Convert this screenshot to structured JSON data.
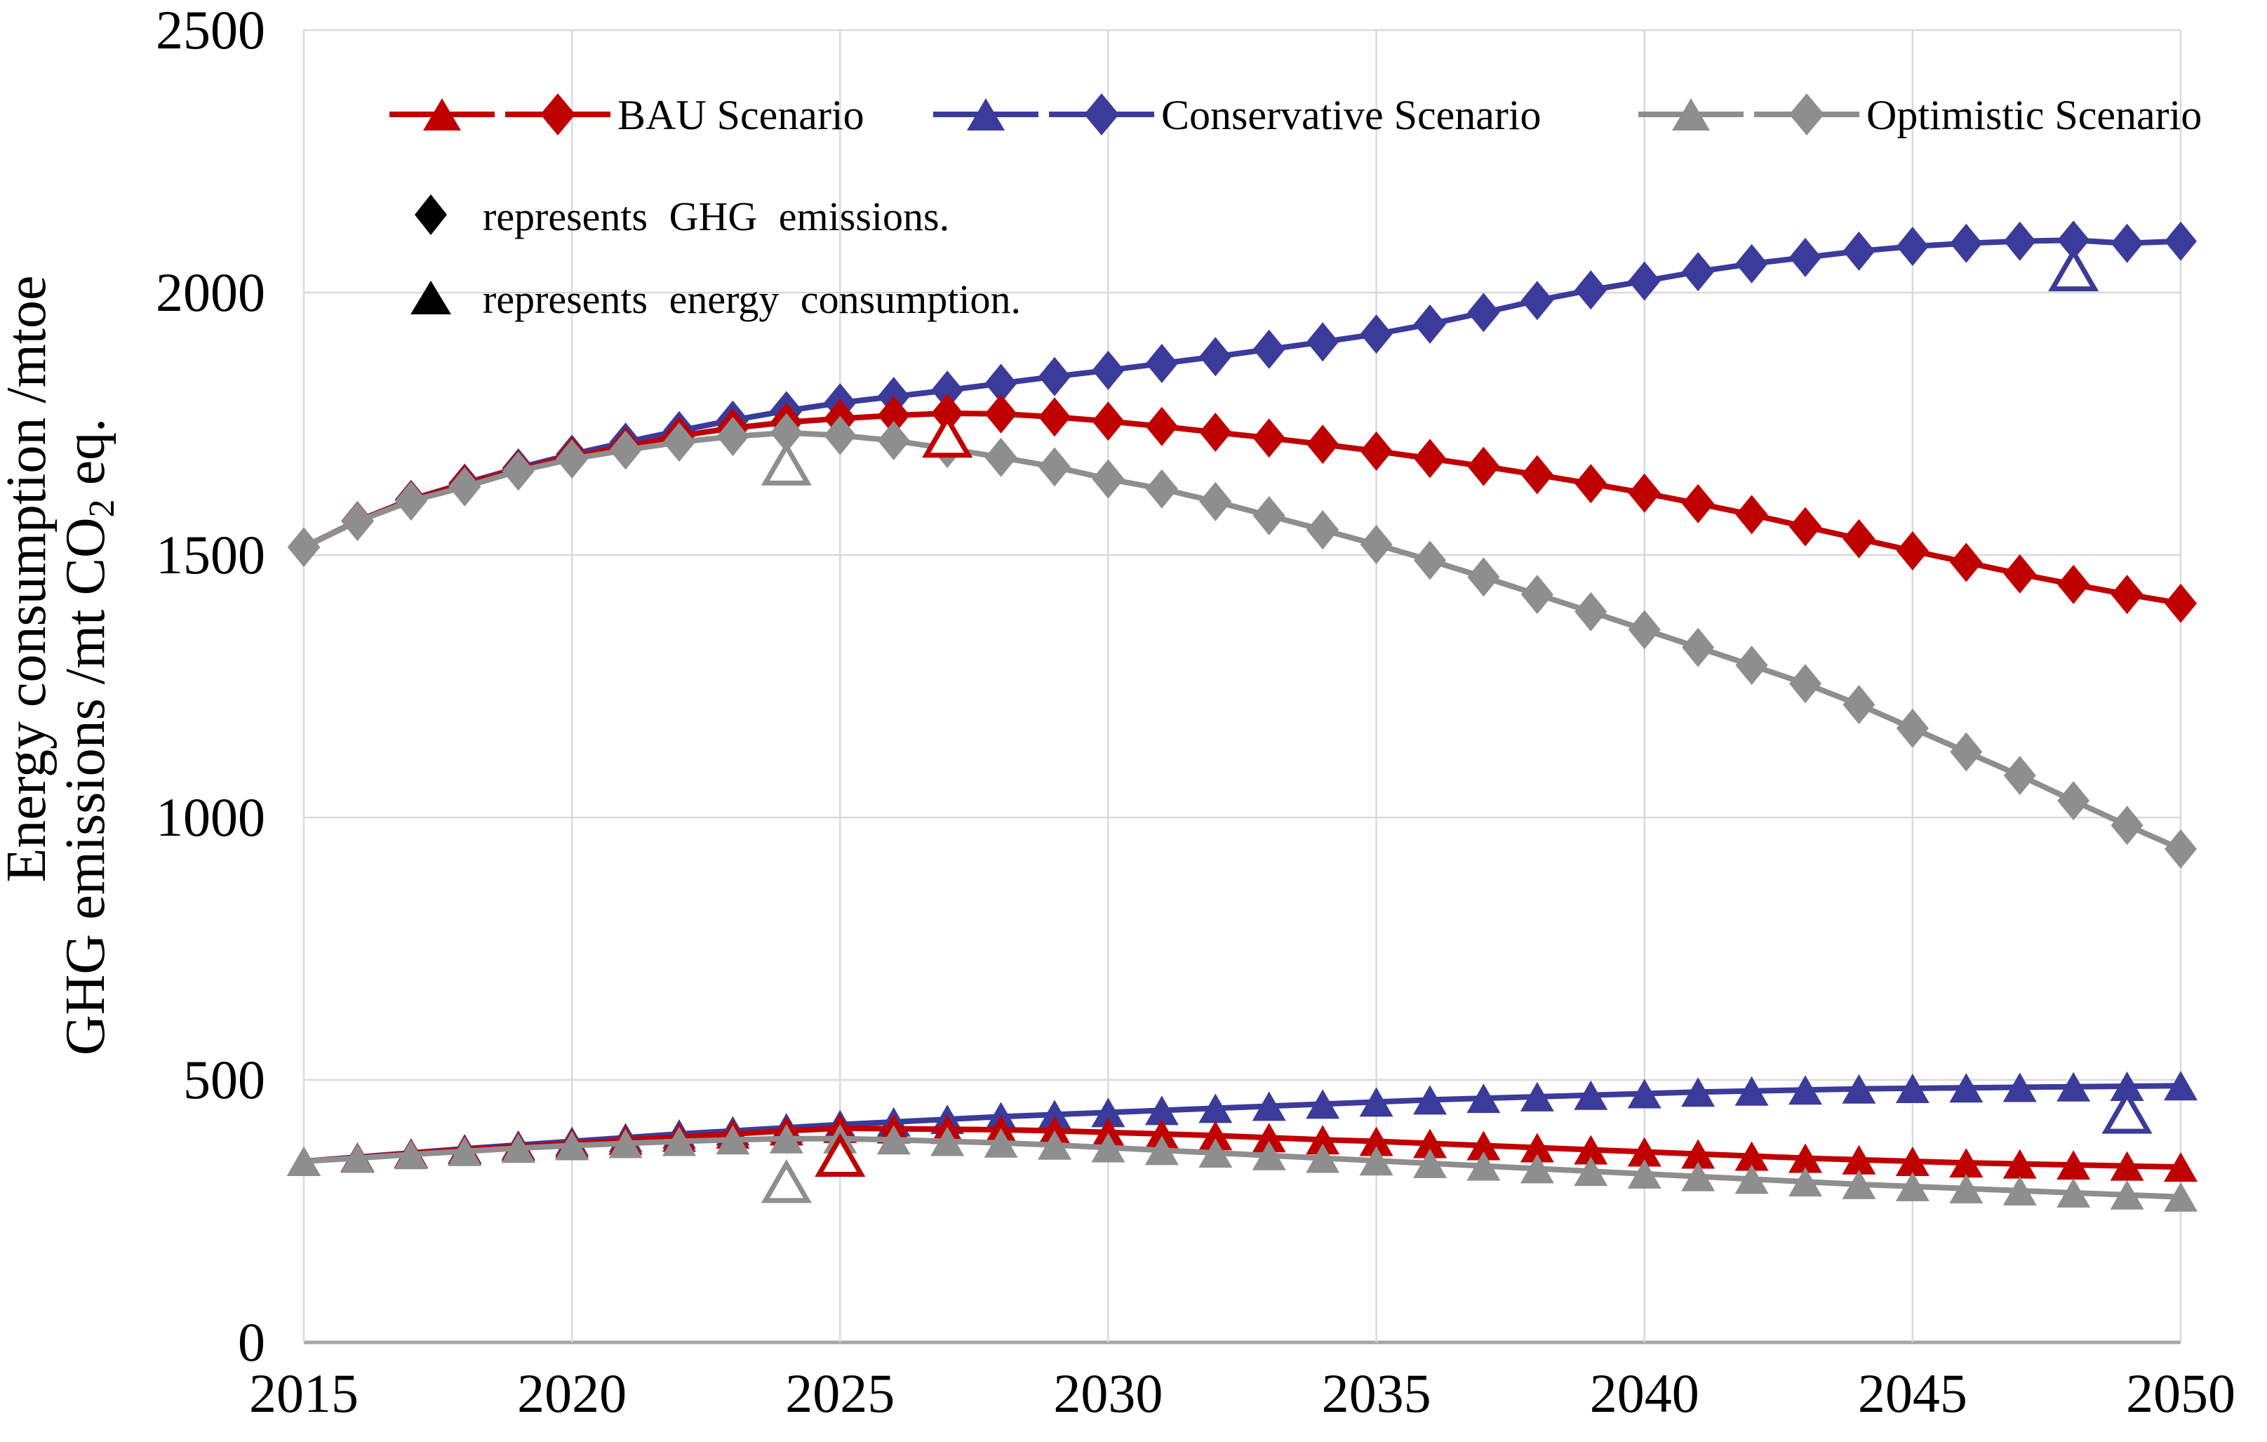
{
  "axes": {
    "y_title_line1": "Energy consumption /mtoe",
    "y_title_line2_prefix": "GHG emissions /mt CO",
    "y_title_line2_sub": "2",
    "y_title_line2_suffix": " eq.",
    "y_ticks": [
      "0",
      "500",
      "1000",
      "1500",
      "2000",
      "2500"
    ],
    "x_ticks": [
      "2015",
      "2020",
      "2025",
      "2030",
      "2035",
      "2040",
      "2045",
      "2050"
    ]
  },
  "legend": {
    "items": [
      {
        "label": "BAU Scenario",
        "color": "#C00000"
      },
      {
        "label": "Conservative Scenario",
        "color": "#3B3B9B"
      },
      {
        "label": "Optimistic Scenario",
        "color": "#8E8E8E"
      }
    ],
    "notes": [
      {
        "marker": "diamond-icon",
        "text": "represents  GHG emissions."
      },
      {
        "marker": "triangle-icon",
        "text": "represents  energy  consumption."
      }
    ]
  },
  "chart_data": {
    "type": "line",
    "title": "",
    "xlabel": "",
    "ylabel": "Energy consumption /mtoe; GHG emissions /mt CO2 eq.",
    "x_range": [
      2015,
      2050
    ],
    "y_range": [
      0,
      2500
    ],
    "grid": true,
    "legend_position": "top-inside",
    "x": [
      2015,
      2016,
      2017,
      2018,
      2019,
      2020,
      2021,
      2022,
      2023,
      2024,
      2025,
      2026,
      2027,
      2028,
      2029,
      2030,
      2031,
      2032,
      2033,
      2034,
      2035,
      2036,
      2037,
      2038,
      2039,
      2040,
      2041,
      2042,
      2043,
      2044,
      2045,
      2046,
      2047,
      2048,
      2049,
      2050
    ],
    "series": [
      {
        "id": "conservative-ghg",
        "name": "Conservative Scenario",
        "metric": "GHG emissions",
        "marker": "diamond",
        "color": "#3B3B9B",
        "values": [
          1515,
          1565,
          1606,
          1637,
          1666,
          1692,
          1715,
          1737,
          1757,
          1775,
          1790,
          1802,
          1814,
          1827,
          1840,
          1852,
          1865,
          1878,
          1892,
          1906,
          1921,
          1940,
          1962,
          1985,
          2005,
          2022,
          2040,
          2055,
          2067,
          2079,
          2088,
          2094,
          2098,
          2100,
          2094,
          2098
        ]
      },
      {
        "id": "bau-ghg",
        "name": "BAU Scenario",
        "metric": "GHG emissions",
        "marker": "diamond",
        "color": "#C00000",
        "values": [
          1515,
          1565,
          1605,
          1635,
          1663,
          1688,
          1706,
          1727,
          1742,
          1753,
          1760,
          1766,
          1770,
          1769,
          1763,
          1755,
          1745,
          1734,
          1723,
          1711,
          1698,
          1684,
          1669,
          1653,
          1636,
          1618,
          1598,
          1577,
          1554,
          1531,
          1508,
          1486,
          1464,
          1444,
          1425,
          1408
        ]
      },
      {
        "id": "optimistic-ghg",
        "name": "Optimistic Scenario",
        "metric": "GHG emissions",
        "marker": "diamond",
        "color": "#8E8E8E",
        "values": [
          1515,
          1564,
          1603,
          1630,
          1660,
          1683,
          1700,
          1715,
          1726,
          1733,
          1728,
          1718,
          1703,
          1686,
          1668,
          1645,
          1626,
          1602,
          1575,
          1548,
          1520,
          1490,
          1458,
          1425,
          1392,
          1358,
          1324,
          1290,
          1255,
          1215,
          1170,
          1125,
          1080,
          1032,
          985,
          940
        ]
      },
      {
        "id": "conservative-energy",
        "name": "Conservative Scenario",
        "metric": "energy consumption",
        "marker": "triangle",
        "color": "#3B3B9B",
        "values": [
          345,
          353,
          361,
          369,
          376,
          383,
          390,
          397,
          403,
          409,
          415,
          420,
          425,
          430,
          434,
          438,
          442,
          446,
          450,
          454,
          458,
          462,
          465,
          468,
          471,
          474,
          477,
          479,
          481,
          483,
          484,
          485,
          486,
          487,
          488,
          489
        ]
      },
      {
        "id": "bau-energy",
        "name": "BAU Scenario",
        "metric": "energy consumption",
        "marker": "triangle",
        "color": "#C00000",
        "values": [
          345,
          352,
          360,
          367,
          373,
          379,
          385,
          391,
          397,
          403,
          408,
          407,
          406,
          405,
          403,
          400,
          397,
          394,
          390,
          386,
          383,
          379,
          375,
          371,
          367,
          363,
          359,
          355,
          351,
          348,
          345,
          342,
          340,
          338,
          336,
          334
        ]
      },
      {
        "id": "optimistic-energy",
        "name": "Optimistic Scenario",
        "metric": "energy consumption",
        "marker": "triangle",
        "color": "#8E8E8E",
        "values": [
          345,
          351,
          358,
          364,
          370,
          375,
          379,
          383,
          386,
          388,
          388,
          386,
          383,
          380,
          376,
          371,
          366,
          361,
          356,
          351,
          346,
          341,
          336,
          331,
          326,
          321,
          316,
          311,
          306,
          301,
          297,
          293,
          289,
          285,
          281,
          277
        ]
      }
    ],
    "annotations": [
      {
        "type": "open-triangle",
        "series": "optimistic-ghg",
        "year": 2024,
        "value": 1672,
        "color": "#8E8E8E"
      },
      {
        "type": "open-triangle",
        "series": "bau-ghg",
        "year": 2027,
        "value": 1725,
        "color": "#C00000"
      },
      {
        "type": "open-triangle",
        "series": "conservative-ghg",
        "year": 2048,
        "value": 2042,
        "color": "#3B3B9B"
      },
      {
        "type": "open-triangle",
        "series": "optimistic-energy",
        "year": 2024,
        "value": 305,
        "color": "#8E8E8E"
      },
      {
        "type": "open-triangle",
        "series": "bau-energy",
        "year": 2025,
        "value": 355,
        "color": "#C00000"
      },
      {
        "type": "open-triangle",
        "series": "conservative-energy",
        "year": 2049,
        "value": 437,
        "color": "#3B3B9B"
      }
    ],
    "colors": {
      "bau": "#C00000",
      "conservative": "#3B3B9B",
      "optimistic": "#8E8E8E",
      "grid": "#D9D9D9",
      "axis": "#A6A6A6",
      "text": "#000000"
    }
  }
}
